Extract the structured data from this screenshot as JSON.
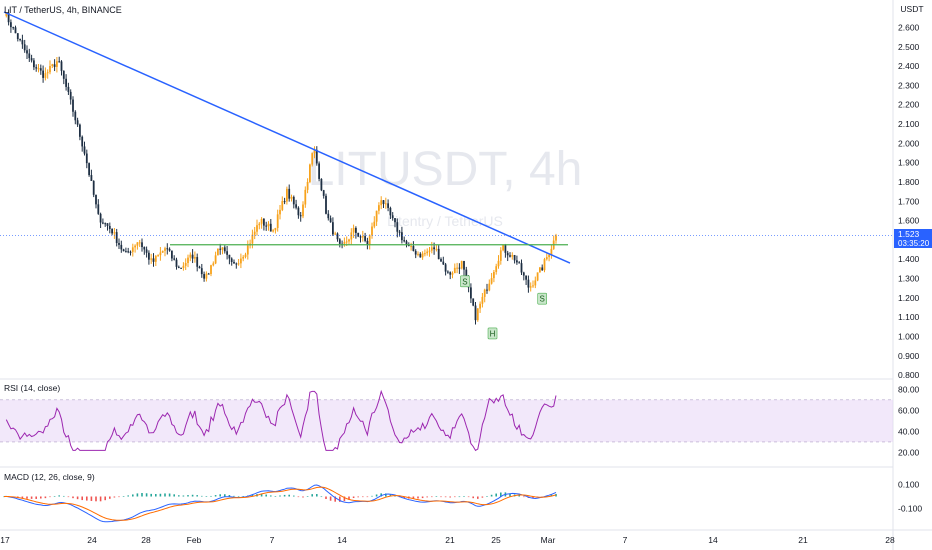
{
  "header": {
    "title": "LIT / TetherUS, 4h, BINANCE"
  },
  "watermark": {
    "symbol": "LITUSDT, 4h",
    "sub": "Litentry / TetherUS"
  },
  "axis_unit": "USDT",
  "price_badge": {
    "value": "1.523",
    "countdown": "03:35:20"
  },
  "rsi_label": "RSI (14, close)",
  "macd_label": "MACD (12, 26, close, 9)",
  "pattern_labels": [
    "S",
    "H",
    "S"
  ],
  "colors": {
    "bull": "#f7a21b",
    "bear": "#1e2f43",
    "trend": "#2962ff",
    "support": "#4caf50",
    "rsi": "#9c27b0",
    "rsi_band": "#e8d5f5",
    "macd": "#2962ff",
    "signal": "#ff6d00",
    "hist_pos": "#26a69a",
    "hist_neg": "#ef5350",
    "badge": "#2962ff"
  },
  "chart_data": {
    "type": "candlestick",
    "x_ticks": [
      "17",
      "24",
      "28",
      "Feb",
      "7",
      "14",
      "21",
      "25",
      "Mar",
      "7",
      "14",
      "21",
      "28"
    ],
    "price_ticks": [
      "2.600",
      "2.500",
      "2.400",
      "2.300",
      "2.200",
      "2.100",
      "2.000",
      "1.900",
      "1.800",
      "1.700",
      "1.600",
      "1.500",
      "1.400",
      "1.300",
      "1.200",
      "1.100",
      "1.000",
      "0.900",
      "0.800"
    ],
    "ylim": [
      0.78,
      2.68
    ],
    "last_price": 1.523,
    "rsi_ticks": [
      "80.00",
      "60.00",
      "40.00",
      "20.00"
    ],
    "rsi_band": [
      30,
      70
    ],
    "macd_ticks": [
      "0.100",
      "-0.100"
    ],
    "key_prices": [
      2.68,
      2.55,
      2.42,
      2.35,
      2.43,
      2.2,
      1.95,
      1.62,
      1.55,
      1.42,
      1.5,
      1.38,
      1.46,
      1.35,
      1.42,
      1.3,
      1.47,
      1.36,
      1.45,
      1.6,
      1.55,
      1.75,
      1.62,
      1.98,
      1.62,
      1.45,
      1.55,
      1.48,
      1.72,
      1.58,
      1.46,
      1.42,
      1.46,
      1.32,
      1.38,
      1.1,
      1.28,
      1.46,
      1.4,
      1.25,
      1.36,
      1.52
    ],
    "trendline": {
      "from": [
        0.0,
        2.68
      ],
      "to": [
        1.0,
        1.38
      ]
    },
    "support_level": 1.475,
    "pattern_points": [
      {
        "label": "S",
        "price": 1.33,
        "pos": 0.835
      },
      {
        "label": "H",
        "price": 1.06,
        "pos": 0.885
      },
      {
        "label": "S",
        "price": 1.24,
        "pos": 0.975
      }
    ]
  }
}
